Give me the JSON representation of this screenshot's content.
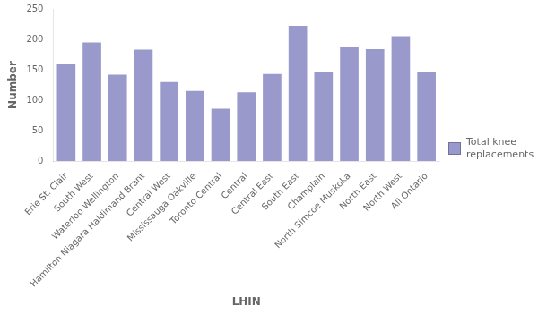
{
  "chart_data": {
    "type": "bar",
    "categories": [
      "Erie St. Clair",
      "South West",
      "Waterloo Wellington",
      "Hamilton Niagara Haldimand Brant",
      "Central West",
      "Mississauga Oakville",
      "Toronto Central",
      "Central",
      "Central East",
      "South East",
      "Champlain",
      "North Simcoe Muskoka",
      "North East",
      "North West",
      "All Ontario"
    ],
    "series": [
      {
        "name": "Total knee\nreplacements",
        "color": "#9999cc",
        "values": [
          160,
          195,
          142,
          183,
          130,
          115,
          86,
          113,
          143,
          222,
          146,
          187,
          184,
          205,
          146
        ]
      }
    ],
    "xlabel": "LHIN",
    "ylabel": "Number",
    "ylim": [
      0,
      250
    ],
    "yticks": [
      0,
      50,
      100,
      150,
      200,
      250
    ],
    "grid": false,
    "legend": "lower right"
  }
}
